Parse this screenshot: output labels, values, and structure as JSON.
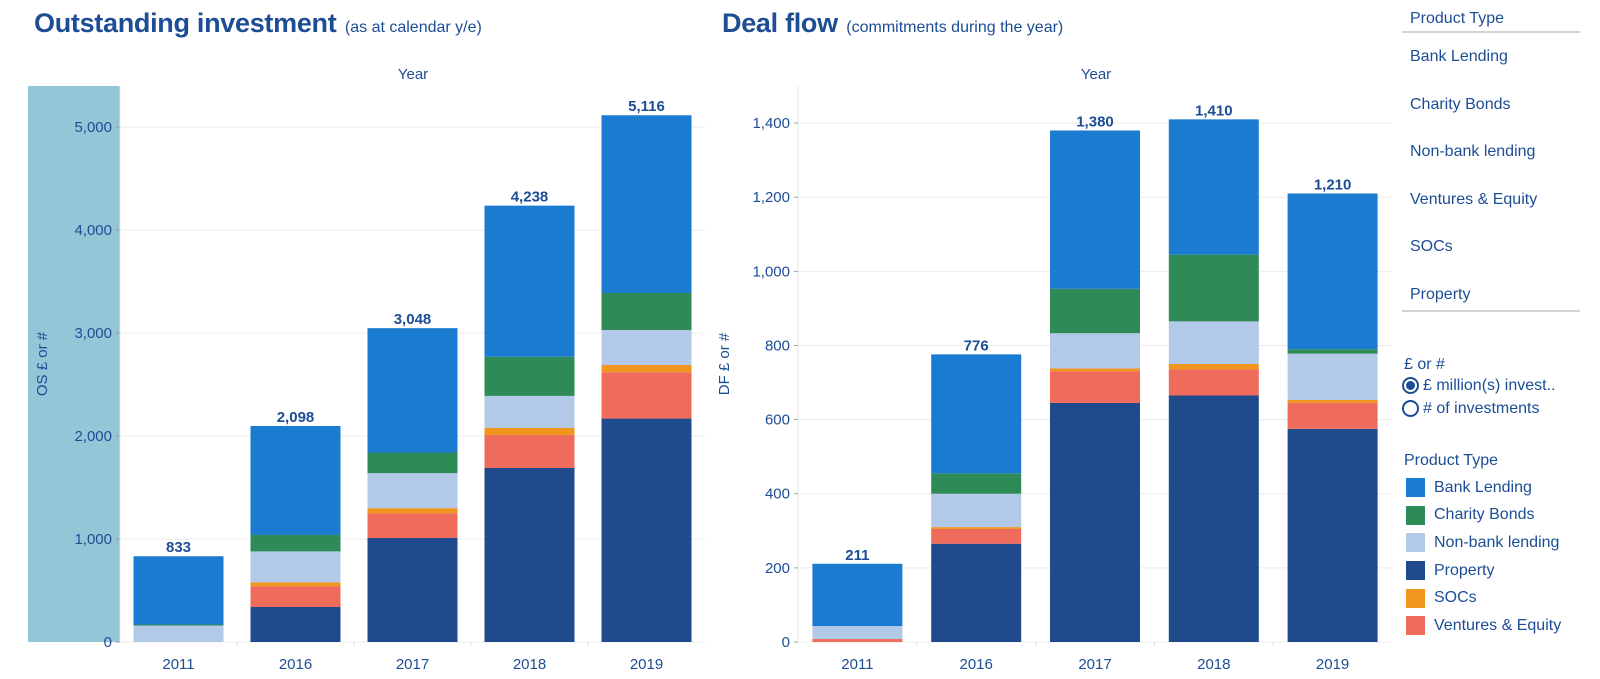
{
  "left_title": {
    "main": "Outstanding investment",
    "sub": "(as at calendar y/e)"
  },
  "right_title": {
    "main": "Deal flow",
    "sub": "(commitments during the year)"
  },
  "colors": {
    "Bank Lending": "#1a7bd1",
    "Charity Bonds": "#2e8b57",
    "Non-bank lending": "#b3c9e8",
    "Property": "#1f4a8c",
    "SOCs": "#f0961e",
    "Ventures & Equity": "#ef6b5b",
    "highlight_band": "#93c6d6"
  },
  "chart_data": [
    {
      "type": "bar",
      "stacked": true,
      "column_header": "Year",
      "ylabel": "OS £ or #",
      "ylim": [
        0,
        5400
      ],
      "yticks": [
        0,
        1000,
        2000,
        3000,
        4000,
        5000
      ],
      "ytick_labels": [
        "0",
        "1,000",
        "2,000",
        "3,000",
        "4,000",
        "5,000"
      ],
      "categories": [
        "2011",
        "2016",
        "2017",
        "2018",
        "2019"
      ],
      "totals": [
        833,
        2098,
        3048,
        4238,
        5116
      ],
      "total_labels": [
        "833",
        "2,098",
        "3,048",
        "4,238",
        "5,116"
      ],
      "series": [
        {
          "name": "Property",
          "values": [
            0,
            340,
            1010,
            1690,
            2170
          ]
        },
        {
          "name": "Ventures & Equity",
          "values": [
            0,
            200,
            240,
            320,
            450
          ]
        },
        {
          "name": "SOCs",
          "values": [
            0,
            40,
            50,
            70,
            70
          ]
        },
        {
          "name": "Non-bank lending",
          "values": [
            160,
            300,
            340,
            310,
            340
          ]
        },
        {
          "name": "Charity Bonds",
          "values": [
            10,
            160,
            200,
            380,
            360
          ]
        },
        {
          "name": "Bank Lending",
          "values": [
            663,
            1058,
            1208,
            1468,
            1726
          ]
        }
      ]
    },
    {
      "type": "bar",
      "stacked": true,
      "column_header": "Year",
      "ylabel": "DF £ or #",
      "ylim": [
        0,
        1500
      ],
      "yticks": [
        0,
        200,
        400,
        600,
        800,
        1000,
        1200,
        1400
      ],
      "ytick_labels": [
        "0",
        "200",
        "400",
        "600",
        "800",
        "1,000",
        "1,200",
        "1,400"
      ],
      "categories": [
        "2011",
        "2016",
        "2017",
        "2018",
        "2019"
      ],
      "totals": [
        211,
        776,
        1380,
        1410,
        1210
      ],
      "total_labels": [
        "211",
        "776",
        "1,380",
        "1,410",
        "1,210"
      ],
      "series": [
        {
          "name": "Property",
          "values": [
            0,
            265,
            645,
            665,
            575
          ]
        },
        {
          "name": "Ventures & Equity",
          "values": [
            8,
            40,
            85,
            70,
            70
          ]
        },
        {
          "name": "SOCs",
          "values": [
            0,
            5,
            8,
            15,
            8
          ]
        },
        {
          "name": "Non-bank lending",
          "values": [
            35,
            90,
            95,
            115,
            125
          ]
        },
        {
          "name": "Charity Bonds",
          "values": [
            0,
            55,
            120,
            180,
            12
          ]
        },
        {
          "name": "Bank Lending",
          "values": [
            168,
            321,
            427,
            365,
            420
          ]
        }
      ]
    }
  ],
  "filter": {
    "title": "Product Type",
    "items": [
      "Bank Lending",
      "Charity Bonds",
      "Non-bank lending",
      "Ventures & Equity",
      "SOCs",
      "Property"
    ]
  },
  "measure": {
    "title": "£ or #",
    "options": [
      "£ million(s) invest..",
      "# of investments"
    ],
    "selected": "£ million(s) invest.."
  },
  "legend": {
    "title": "Product Type",
    "items": [
      "Bank Lending",
      "Charity Bonds",
      "Non-bank lending",
      "Property",
      "SOCs",
      "Ventures & Equity"
    ]
  }
}
